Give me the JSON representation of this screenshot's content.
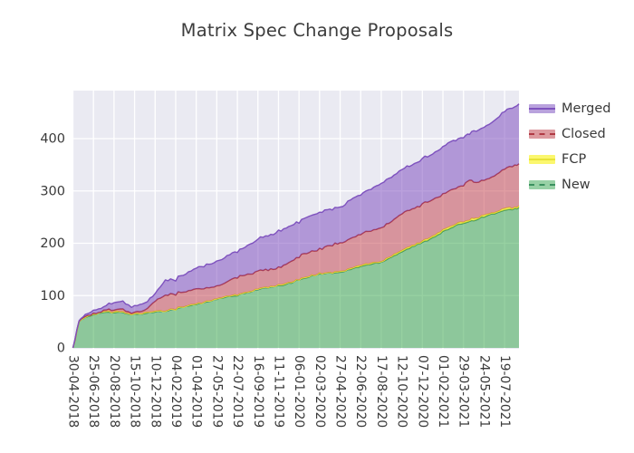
{
  "chart_data": {
    "type": "area",
    "stacked": true,
    "title": "Matrix Spec Change Proposals",
    "xlabel": "",
    "ylabel": "",
    "grid": true,
    "plot_bg": "#eaeaf2",
    "grid_color": "#ffffff",
    "text_color": "#3a3a3a",
    "legend_position": "right-outside",
    "y_ticks": [
      0,
      100,
      200,
      300,
      400
    ],
    "ylim": [
      0,
      492
    ],
    "x_tick_labels": [
      "30-04-2018",
      "25-06-2018",
      "20-08-2018",
      "15-10-2018",
      "10-12-2018",
      "04-02-2019",
      "01-04-2019",
      "27-05-2019",
      "22-07-2019",
      "16-09-2019",
      "11-11-2019",
      "06-01-2020",
      "02-03-2020",
      "27-04-2020",
      "22-06-2020",
      "17-08-2020",
      "12-10-2020",
      "07-12-2020",
      "01-02-2021",
      "29-03-2021",
      "24-05-2021",
      "19-07-2021"
    ],
    "sample_x": [
      0,
      0.1,
      0.3,
      0.6,
      1,
      1.5,
      2,
      2.3,
      2.7,
      3,
      3.5,
      4,
      4.5,
      5,
      5.5,
      6,
      6.5,
      7,
      7.5,
      8,
      8.5,
      9,
      9.5,
      10,
      10.5,
      11,
      11.5,
      12,
      12.5,
      13,
      13.5,
      14,
      14.5,
      15,
      15.5,
      16,
      16.5,
      17,
      17.5,
      18,
      18.5,
      19,
      19.3,
      19.5,
      20,
      20.5,
      21,
      21.5,
      21.7
    ],
    "stack_order_note": "series listed bottom-to-top of stack; values are per-series (non-cumulative) counts sampled at sample_x (units = x tick index)",
    "series": [
      {
        "name": "New",
        "fill": "rgba(47,164,68,0.5)",
        "line": "#3a915f",
        "legend_fill": "#98d1a6",
        "legend_dash": true,
        "values": [
          0,
          15,
          50,
          58,
          64,
          68,
          67,
          68,
          65,
          64,
          66,
          69,
          71,
          74,
          79,
          83,
          88,
          93,
          97,
          100,
          106,
          112,
          115,
          118,
          123,
          130,
          136,
          142,
          143,
          144,
          150,
          156,
          160,
          164,
          174,
          184,
          193,
          201,
          211,
          222,
          231,
          239,
          242,
          244,
          251,
          257,
          262,
          266,
          268
        ]
      },
      {
        "name": "FCP",
        "fill": "rgba(255,246,0,0.55)",
        "line": "#e8e337",
        "legend_fill": "#fbf76e",
        "legend_dash": false,
        "values": [
          0,
          0,
          0,
          0,
          1,
          1,
          1,
          1,
          1,
          1,
          1,
          1,
          1,
          1,
          1,
          1,
          1,
          1,
          1,
          1,
          1,
          1,
          1,
          1,
          1,
          1,
          1,
          1,
          1,
          2,
          2,
          2,
          2,
          2,
          2,
          2,
          2,
          2,
          3,
          3,
          3,
          3,
          3,
          3,
          3,
          3,
          3,
          3,
          3
        ]
      },
      {
        "name": "Closed",
        "fill": "rgba(196,62,71,0.5)",
        "line": "#b03a44",
        "legend_fill": "#dd9a9f",
        "legend_dash": true,
        "values": [
          0,
          0,
          1,
          1,
          1,
          2,
          4,
          5,
          3,
          3,
          5,
          19,
          30,
          29,
          28,
          28,
          26,
          24,
          28,
          34,
          34,
          34,
          34,
          33,
          39,
          44,
          46,
          47,
          52,
          55,
          56,
          60,
          62,
          64,
          67,
          70,
          70,
          71,
          70,
          69,
          69,
          70,
          77,
          69,
          66,
          70,
          75,
          81,
          81
        ]
      },
      {
        "name": "Merged",
        "fill": "rgba(119,68,188,0.5)",
        "line": "#7e52be",
        "legend_fill": "#b9a2dd",
        "legend_dash": false,
        "values": [
          0,
          1,
          2,
          3,
          6,
          7,
          14,
          15,
          12,
          12,
          13,
          14,
          28,
          28,
          34,
          40,
          44,
          48,
          49,
          49,
          55,
          61,
          65,
          70,
          69,
          67,
          69,
          70,
          69,
          69,
          74,
          76,
          80,
          85,
          85,
          84,
          85,
          86,
          88,
          91,
          92,
          92,
          88,
          98,
          101,
          105,
          110,
          112,
          115
        ]
      }
    ],
    "legend_order": [
      "Merged",
      "Closed",
      "FCP",
      "New"
    ]
  }
}
